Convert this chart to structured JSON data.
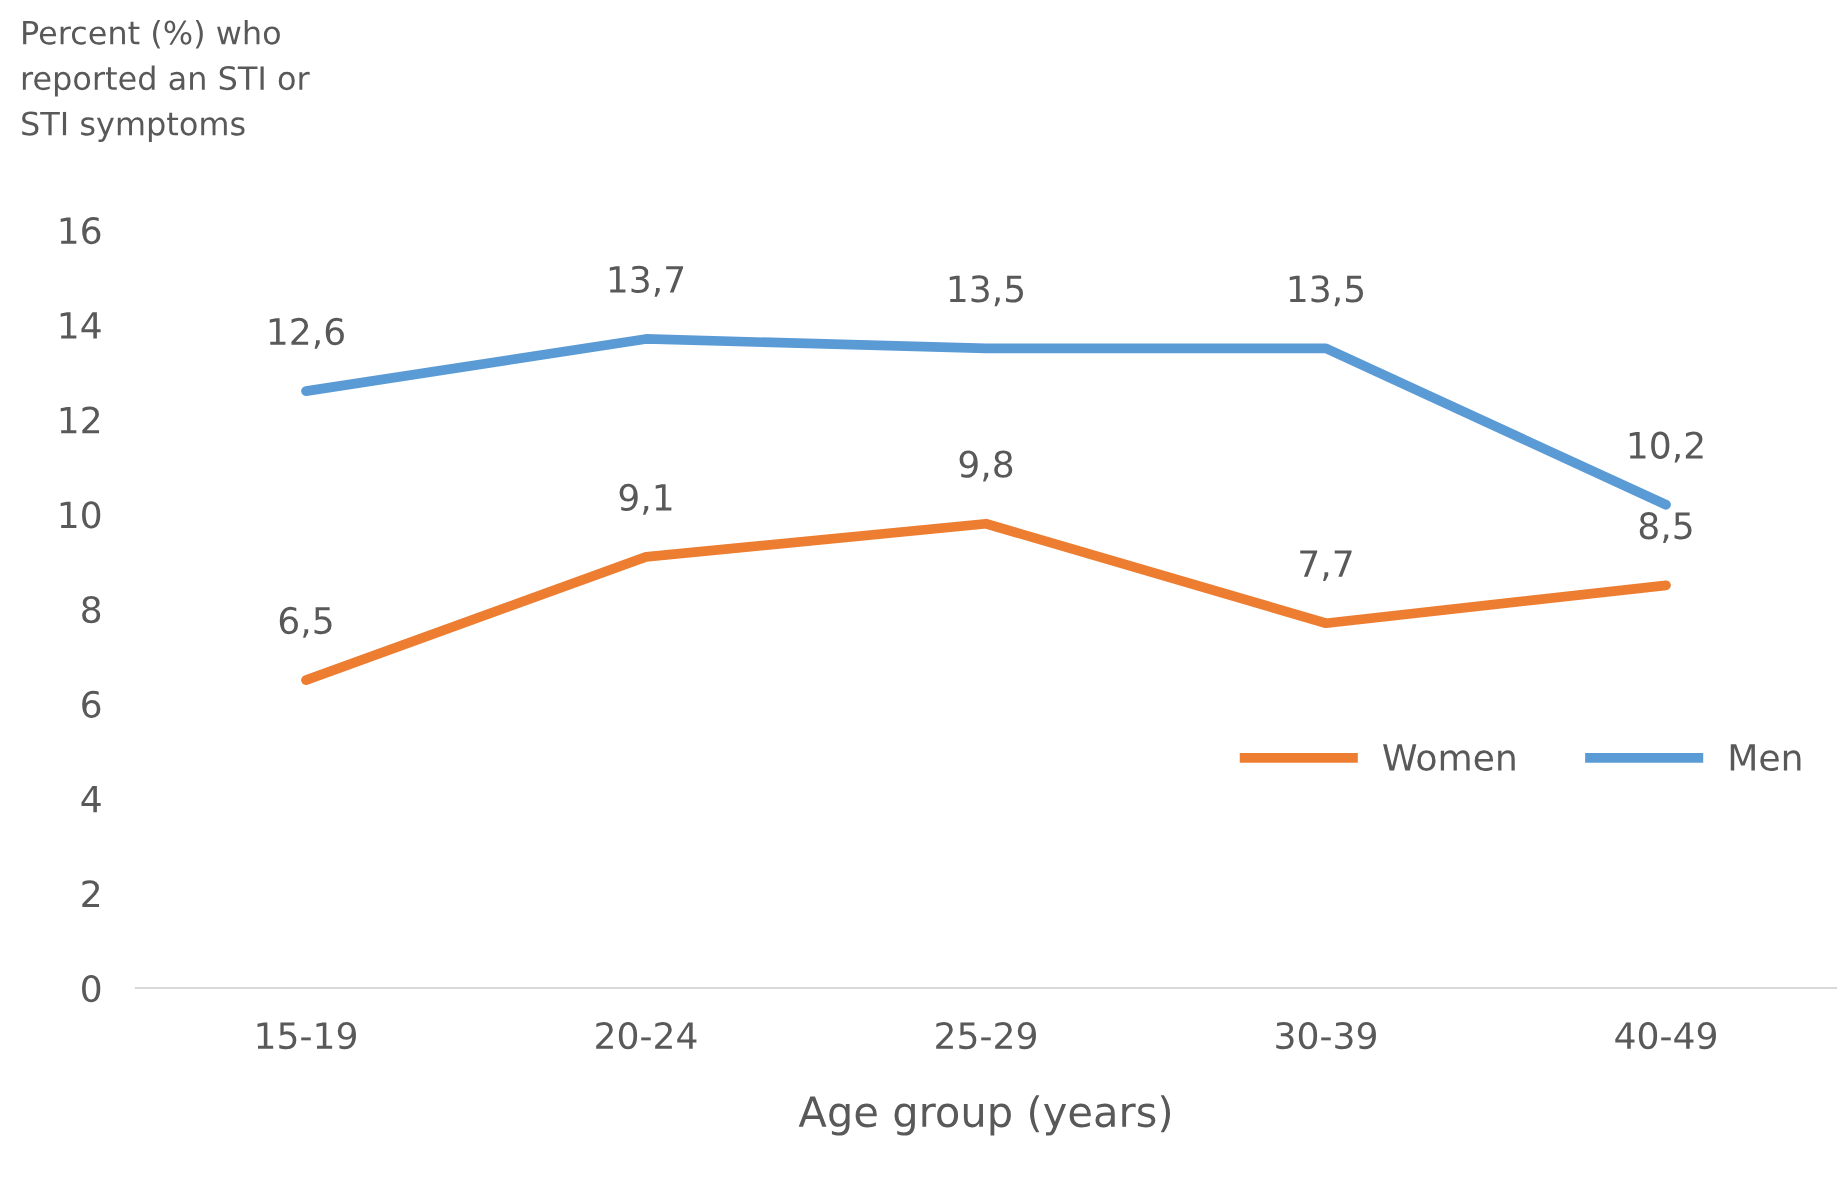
{
  "chart_data": {
    "type": "line",
    "ylabel": "Percent (%) who\nreported an STI or\nSTI symptoms",
    "xlabel": "Age group (years)",
    "categories": [
      "15-19",
      "20-24",
      "25-29",
      "30-39",
      "40-49"
    ],
    "series": [
      {
        "name": "Women",
        "color": "#ed7d31",
        "values": [
          6.5,
          9.1,
          9.8,
          7.7,
          8.5
        ],
        "value_labels": [
          "6,5",
          "9,1",
          "9,8",
          "7,7",
          "8,5"
        ]
      },
      {
        "name": "Men",
        "color": "#5b9bd5",
        "values": [
          12.6,
          13.7,
          13.5,
          13.5,
          10.2
        ],
        "value_labels": [
          "12,6",
          "13,7",
          "13,5",
          "13,5",
          "10,2"
        ]
      }
    ],
    "ylim": [
      0,
      16
    ],
    "yticks": [
      0,
      2,
      4,
      6,
      8,
      10,
      12,
      14,
      16
    ],
    "grid": false,
    "legend": "right",
    "marker": "none",
    "line_style": "solid"
  }
}
